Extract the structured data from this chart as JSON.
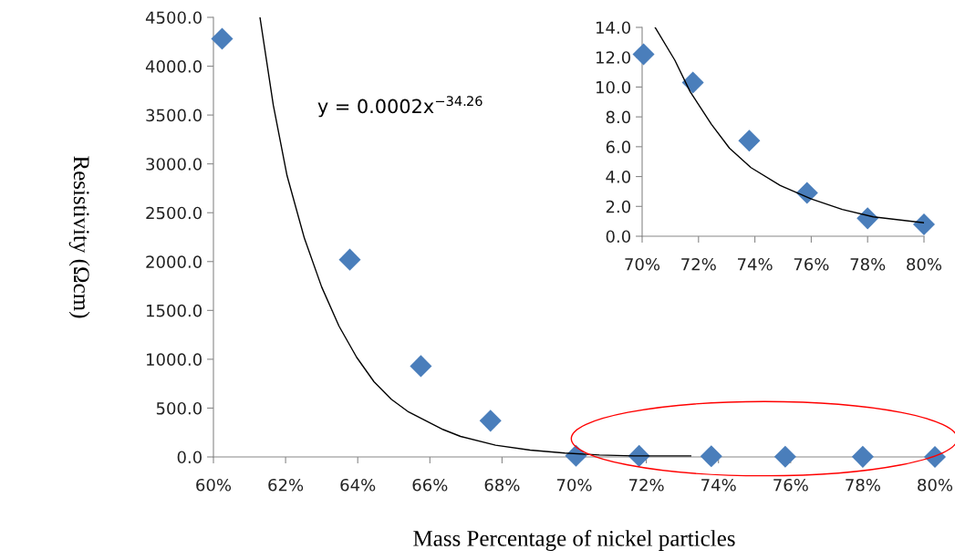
{
  "chart_data": [
    {
      "type": "scatter",
      "xlabel": "Mass Percentage of nickel particles",
      "ylabel": "Resistivity (Ωcm)",
      "series": [
        {
          "color": "#4a7ebb",
          "marker": "diamond",
          "x": [
            60.24,
            63.78,
            65.75,
            67.68,
            70.05,
            71.8,
            73.8,
            75.85,
            78.0,
            80.0
          ],
          "values": [
            4280,
            2020,
            930,
            370,
            12.2,
            10.3,
            6.4,
            2.9,
            1.2,
            0.8
          ]
        },
        {
          "type": "line",
          "color": "#000000",
          "marker": "none",
          "line_style": "solid",
          "x": [
            61.29,
            61.66,
            62.04,
            62.52,
            63.0,
            63.48,
            63.97,
            64.45,
            64.93,
            65.41,
            65.89,
            66.37,
            66.85,
            67.82,
            68.78,
            69.74,
            70.7,
            71.66,
            73.23
          ],
          "values": [
            4500,
            3600,
            2880,
            2240,
            1740,
            1340,
            1020,
            770,
            590,
            460,
            370,
            280,
            210,
            120,
            70,
            40,
            20,
            10,
            10
          ]
        }
      ],
      "xlim": [
        60,
        80
      ],
      "xticks": [
        {
          "value": 60,
          "label": "60%"
        },
        {
          "value": 62,
          "label": "62%"
        },
        {
          "value": 64,
          "label": "64%"
        },
        {
          "value": 66,
          "label": "66%"
        },
        {
          "value": 68,
          "label": "68%"
        },
        {
          "value": 70,
          "label": "70%"
        },
        {
          "value": 72,
          "label": "72%"
        },
        {
          "value": 74,
          "label": "74%"
        },
        {
          "value": 76,
          "label": "76%"
        },
        {
          "value": 78,
          "label": "78%"
        },
        {
          "value": 80,
          "label": "80%"
        }
      ],
      "ylim": [
        0,
        4500
      ],
      "yticks": [
        {
          "value": 0,
          "label": "0.0"
        },
        {
          "value": 500,
          "label": "500.0"
        },
        {
          "value": 1000,
          "label": "1000.0"
        },
        {
          "value": 1500,
          "label": "1500.0"
        },
        {
          "value": 2000,
          "label": "2000.0"
        },
        {
          "value": 2500,
          "label": "2500.0"
        },
        {
          "value": 3000,
          "label": "3000.0"
        },
        {
          "value": 3500,
          "label": "3500.0"
        },
        {
          "value": 4000,
          "label": "4000.0"
        },
        {
          "value": 4500,
          "label": "4500.0"
        }
      ],
      "grid": false,
      "legend": false,
      "annotations": [
        "y = 0.0002x$^{−34.26}$"
      ]
    },
    {
      "type": "scatter",
      "series": [
        {
          "color": "#4a7ebb",
          "marker": "diamond",
          "x": [
            70.05,
            71.8,
            73.8,
            75.85,
            78.0,
            80.0
          ],
          "values": [
            12.2,
            10.3,
            6.4,
            2.9,
            1.2,
            0.8
          ]
        },
        {
          "type": "line",
          "color": "#000000",
          "marker": "none",
          "line_style": "solid",
          "x": [
            70.46,
            71.16,
            71.7,
            72.46,
            73.1,
            73.86,
            74.9,
            76.0,
            77.1,
            78.2,
            80.0
          ],
          "values": [
            14.0,
            11.8,
            9.7,
            7.5,
            5.9,
            4.6,
            3.4,
            2.5,
            1.8,
            1.3,
            0.9
          ]
        }
      ],
      "xlim": [
        70,
        80
      ],
      "xticks": [
        {
          "value": 70,
          "label": "70%"
        },
        {
          "value": 72,
          "label": "72%"
        },
        {
          "value": 74,
          "label": "74%"
        },
        {
          "value": 76,
          "label": "76%"
        },
        {
          "value": 78,
          "label": "78%"
        },
        {
          "value": 80,
          "label": "80%"
        }
      ],
      "ylim": [
        0,
        14
      ],
      "yticks": [
        {
          "value": 0,
          "label": "0.0"
        },
        {
          "value": 2,
          "label": "2.0"
        },
        {
          "value": 4,
          "label": "4.0"
        },
        {
          "value": 6,
          "label": "6.0"
        },
        {
          "value": 8,
          "label": "8.0"
        },
        {
          "value": 10,
          "label": "10.0"
        },
        {
          "value": 12,
          "label": "12.0"
        },
        {
          "value": 14,
          "label": "14.0"
        }
      ],
      "grid": false,
      "legend": false
    }
  ]
}
